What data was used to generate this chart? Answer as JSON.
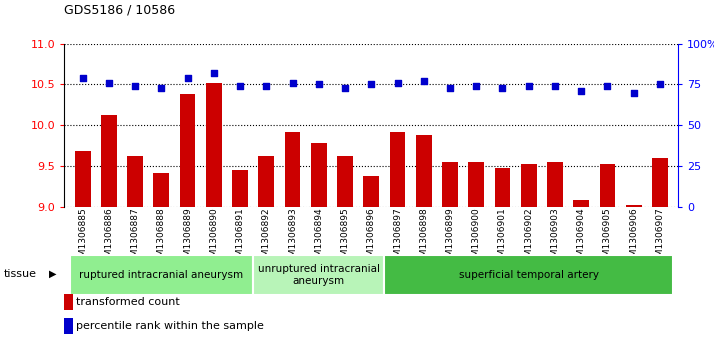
{
  "title": "GDS5186 / 10586",
  "samples": [
    "GSM1306885",
    "GSM1306886",
    "GSM1306887",
    "GSM1306888",
    "GSM1306889",
    "GSM1306890",
    "GSM1306891",
    "GSM1306892",
    "GSM1306893",
    "GSM1306894",
    "GSM1306895",
    "GSM1306896",
    "GSM1306897",
    "GSM1306898",
    "GSM1306899",
    "GSM1306900",
    "GSM1306901",
    "GSM1306902",
    "GSM1306903",
    "GSM1306904",
    "GSM1306905",
    "GSM1306906",
    "GSM1306907"
  ],
  "bar_values": [
    9.68,
    10.12,
    9.62,
    9.42,
    10.38,
    10.52,
    9.45,
    9.62,
    9.92,
    9.78,
    9.62,
    9.38,
    9.92,
    9.88,
    9.55,
    9.55,
    9.48,
    9.52,
    9.55,
    9.08,
    9.52,
    9.02,
    9.6
  ],
  "dot_values": [
    79,
    76,
    74,
    73,
    79,
    82,
    74,
    74,
    76,
    75,
    73,
    75,
    76,
    77,
    73,
    74,
    73,
    74,
    74,
    71,
    74,
    70,
    75
  ],
  "bar_color": "#cc0000",
  "dot_color": "#0000cc",
  "ylim_left": [
    9,
    11
  ],
  "ylim_right": [
    0,
    100
  ],
  "yticks_left": [
    9,
    9.5,
    10,
    10.5,
    11
  ],
  "yticks_right": [
    0,
    25,
    50,
    75,
    100
  ],
  "ytick_labels_right": [
    "0",
    "25",
    "50",
    "75",
    "100%"
  ],
  "groups": [
    {
      "label": "ruptured intracranial aneurysm",
      "start": 0,
      "end": 7,
      "color": "#90ee90"
    },
    {
      "label": "unruptured intracranial\naneurysm",
      "start": 7,
      "end": 12,
      "color": "#b8f4b8"
    },
    {
      "label": "superficial temporal artery",
      "start": 12,
      "end": 23,
      "color": "#44bb44"
    }
  ],
  "tissue_label": "tissue",
  "legend_bar_label": "transformed count",
  "legend_dot_label": "percentile rank within the sample",
  "bg_color": "#ffffff",
  "xtick_bg": "#d0d0d0"
}
